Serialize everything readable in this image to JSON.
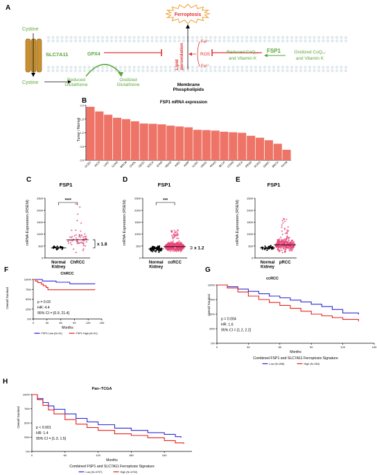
{
  "colors": {
    "green": "#5aa63a",
    "red": "#e03030",
    "orange": "#f0a030",
    "membrane": "#c8d8e0",
    "bar": "#ee7468",
    "blue": "#2a2ad8",
    "redline": "#e8211d",
    "gold": "#c89030"
  },
  "panelA": {
    "letter": "A",
    "ferroptosis": "Ferroptosis",
    "cystine_top": "Cystine",
    "cystine_bottom": "Cystine",
    "slc7a11": "SLC7A11",
    "gpx4": "GPX4",
    "reduced_gsh_1": "Reduced",
    "reduced_gsh_2": "Glutathione",
    "oxidized_gsh_1": "Oxidized",
    "oxidized_gsh_2": "Glutathione",
    "lipid_1": "Lipid",
    "lipid_2": "peroxidation",
    "fe_top": "Fe²⁺",
    "ros": "ROS",
    "fe_bottom": "Fe³⁺",
    "membrane_1": "Membrane",
    "membrane_2": "Phospholipids",
    "fsp1": "FSP1",
    "reduced_coq_1": "Reduced CoQ₁₀",
    "reduced_coq_2": "and Vitamin K",
    "oxidized_coq_1": "Oxidized CoQ₁₀",
    "oxidized_coq_2": "and Vitamin K"
  },
  "panelB": {
    "letter": "B"
  },
  "panelC": {
    "letter": "C",
    "fc": "x 1.8",
    "sig": "****"
  },
  "panelD": {
    "letter": "D",
    "fc": "x 1.2",
    "sig": "***"
  },
  "panelE": {
    "letter": "E"
  },
  "panelF": {
    "letter": "F",
    "stats": [
      "p = 0.03",
      "HR: 4.4",
      "95% CI = [0.9, 21.4]"
    ]
  },
  "panelG": {
    "letter": "G",
    "stats": [
      "p = 0.004",
      "HR: 1.6",
      "95% CI = [1.2, 2.2]"
    ]
  },
  "panelH": {
    "letter": "H",
    "stats": [
      "p < 0.001",
      "HR: 1.4",
      "95% CI = [1.3, 1.5]"
    ]
  },
  "chart_data": [
    {
      "id": "B",
      "type": "bar",
      "title": "FSP1 mRNA expression",
      "ylabel": "Tumor / Normal",
      "ylim": [
        0,
        2.0
      ],
      "yticks": [
        0.0,
        0.5,
        1.0,
        1.5,
        2.0
      ],
      "categories": [
        "UCEC",
        "KICH",
        "LIHC",
        "LUAD",
        "BRCM",
        "CHOL",
        "CESC",
        "ESCA",
        "STAD",
        "READ",
        "KIRC",
        "KIRP",
        "LUSC",
        "HNSC",
        "PAAD",
        "BLCA",
        "COAD",
        "THCA",
        "PRAD",
        "PCPG",
        "SARC",
        "BRCA",
        "THYM"
      ],
      "highlight": [
        "KICH",
        "KIRC",
        "KIRP"
      ],
      "values": [
        1.95,
        1.78,
        1.66,
        1.55,
        1.5,
        1.42,
        1.34,
        1.33,
        1.31,
        1.26,
        1.23,
        1.2,
        1.11,
        1.1,
        1.08,
        1.04,
        1.02,
        1.0,
        0.89,
        0.82,
        0.73,
        0.6,
        0.38
      ]
    },
    {
      "id": "C",
      "type": "scatter",
      "title": "FSP1",
      "ylabel": "mRNA Expression (RSEM)",
      "ylim": [
        0,
        2500
      ],
      "yticks": [
        0,
        500,
        1000,
        1500,
        2000,
        2500
      ],
      "groups": [
        {
          "name": "Normal Kidney",
          "median": 420,
          "spread": 120,
          "n": 25,
          "color": "#000000"
        },
        {
          "name": "ChRCC",
          "median": 760,
          "spread": 500,
          "n": 66,
          "color": "#e8457a"
        }
      ]
    },
    {
      "id": "D",
      "type": "scatter",
      "title": "FSP1",
      "ylabel": "mRNA Expression (RSEM)",
      "ylim": [
        0,
        2500
      ],
      "yticks": [
        0,
        500,
        1000,
        1500,
        2000,
        2500
      ],
      "groups": [
        {
          "name": "Normal Kidney",
          "median": 380,
          "spread": 150,
          "n": 72,
          "color": "#000000"
        },
        {
          "name": "ccRCC",
          "median": 470,
          "spread": 230,
          "n": 533,
          "color": "#e8457a"
        }
      ]
    },
    {
      "id": "E",
      "type": "scatter",
      "title": "FSP1",
      "ylabel": "mRNA Expression (RSEM)",
      "ylim": [
        0,
        2500
      ],
      "yticks": [
        0,
        500,
        1000,
        1500,
        2000,
        2500
      ],
      "groups": [
        {
          "name": "Normal Kidney",
          "median": 420,
          "spread": 120,
          "n": 32,
          "color": "#000000"
        },
        {
          "name": "pRCC",
          "median": 550,
          "spread": 350,
          "n": 290,
          "color": "#e8457a"
        }
      ]
    },
    {
      "id": "F",
      "type": "line",
      "title": "ChRCC",
      "ylabel": "Overall Survival",
      "xlabel": "Months",
      "xlim": [
        0,
        150
      ],
      "xticks": [
        0,
        30,
        60,
        90,
        120,
        150
      ],
      "ylim": [
        0,
        100
      ],
      "yticks": [
        0,
        25,
        50,
        75,
        100
      ],
      "legend_title": "",
      "series": [
        {
          "name": "FSP1 Low (N=31)",
          "color": "#2a2ad8",
          "points": [
            [
              0,
              100
            ],
            [
              15,
              100
            ],
            [
              20,
              96
            ],
            [
              40,
              96
            ],
            [
              50,
              93
            ],
            [
              75,
              93
            ],
            [
              80,
              89
            ],
            [
              135,
              89
            ]
          ]
        },
        {
          "name": "FSP1 High (N=31)",
          "color": "#e8211d",
          "points": [
            [
              0,
              100
            ],
            [
              5,
              96
            ],
            [
              10,
              92
            ],
            [
              18,
              88
            ],
            [
              22,
              84
            ],
            [
              28,
              80
            ],
            [
              32,
              74
            ],
            [
              135,
              74
            ]
          ]
        }
      ]
    },
    {
      "id": "G",
      "type": "line",
      "title": "ccRCC",
      "ylabel": "Overall Survival",
      "xlabel": "Months",
      "xlim": [
        0,
        150
      ],
      "xticks": [
        0,
        30,
        60,
        90,
        120,
        150
      ],
      "ylim": [
        0,
        100
      ],
      "yticks": [
        0,
        25,
        50,
        75,
        100
      ],
      "legend_title": "Combined FSP1 and SLC7A11 Ferroptosis Signature",
      "series": [
        {
          "name": "Low (N=268)",
          "color": "#2a2ad8",
          "points": [
            [
              0,
              100
            ],
            [
              10,
              97
            ],
            [
              20,
              93
            ],
            [
              30,
              89
            ],
            [
              40,
              85
            ],
            [
              50,
              81
            ],
            [
              60,
              78
            ],
            [
              70,
              74
            ],
            [
              80,
              71
            ],
            [
              90,
              67
            ],
            [
              100,
              63
            ],
            [
              110,
              58
            ],
            [
              120,
              52
            ],
            [
              135,
              50
            ]
          ]
        },
        {
          "name": "High (N=264)",
          "color": "#e8211d",
          "points": [
            [
              0,
              100
            ],
            [
              10,
              95
            ],
            [
              20,
              88
            ],
            [
              30,
              81
            ],
            [
              40,
              75
            ],
            [
              50,
              70
            ],
            [
              60,
              65
            ],
            [
              70,
              60
            ],
            [
              80,
              55
            ],
            [
              90,
              50
            ],
            [
              100,
              47
            ],
            [
              110,
              44
            ],
            [
              120,
              41
            ],
            [
              135,
              38
            ]
          ]
        }
      ]
    },
    {
      "id": "H",
      "type": "line",
      "title": "Pan−TCGA",
      "ylabel": "Overall Survival",
      "xlabel": "Months",
      "xlim": [
        0,
        290
      ],
      "xticks": [
        0,
        60,
        120,
        180,
        240
      ],
      "ylim": [
        0,
        100
      ],
      "yticks": [
        0,
        25,
        50,
        75,
        100
      ],
      "legend_title": "Combined FSP1 and SLC7A11 Ferroptosis Signature",
      "series": [
        {
          "name": "Low (N=4737)",
          "color": "#2a2ad8",
          "points": [
            [
              0,
              100
            ],
            [
              10,
              93
            ],
            [
              20,
              86
            ],
            [
              30,
              80
            ],
            [
              40,
              74
            ],
            [
              60,
              66
            ],
            [
              80,
              58
            ],
            [
              100,
              52
            ],
            [
              120,
              47
            ],
            [
              150,
              41
            ],
            [
              180,
              37
            ],
            [
              210,
              33
            ],
            [
              240,
              30
            ],
            [
              260,
              26
            ],
            [
              270,
              24
            ]
          ]
        },
        {
          "name": "High (N=4732)",
          "color": "#e8211d",
          "points": [
            [
              0,
              100
            ],
            [
              10,
              91
            ],
            [
              20,
              81
            ],
            [
              30,
              73
            ],
            [
              40,
              66
            ],
            [
              60,
              56
            ],
            [
              80,
              48
            ],
            [
              100,
              42
            ],
            [
              120,
              37
            ],
            [
              150,
              31
            ],
            [
              180,
              28
            ],
            [
              210,
              24
            ],
            [
              240,
              19
            ],
            [
              260,
              15
            ],
            [
              275,
              13
            ]
          ]
        }
      ]
    }
  ]
}
